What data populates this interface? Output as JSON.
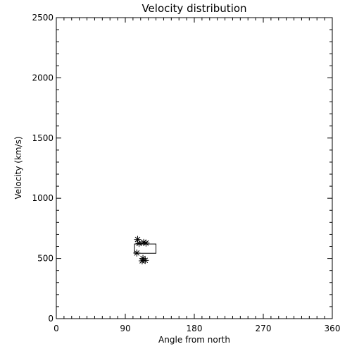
{
  "chart_data": {
    "type": "scatter",
    "title": "Velocity distribution",
    "xlabel": "Angle from north",
    "ylabel": "Velocity (km/s)",
    "xlim": [
      0,
      360
    ],
    "ylim": [
      0,
      2500
    ],
    "x_ticks": [
      0,
      90,
      180,
      270,
      360
    ],
    "y_ticks": [
      0,
      500,
      1000,
      1500,
      2000,
      2500
    ],
    "x_ticks_minor": 10,
    "y_ticks_minor": 100,
    "grid": false,
    "marker": "asterisk",
    "points": [
      {
        "x": 106,
        "y": 658
      },
      {
        "x": 108,
        "y": 625
      },
      {
        "x": 114,
        "y": 633
      },
      {
        "x": 117,
        "y": 628
      },
      {
        "x": 105,
        "y": 545
      },
      {
        "x": 113,
        "y": 500
      },
      {
        "x": 112,
        "y": 480
      },
      {
        "x": 116,
        "y": 484
      }
    ],
    "box": {
      "x0": 102,
      "x1": 130,
      "y0": 543,
      "y1": 620
    },
    "colors": {
      "axes": "#000000",
      "background": "#ffffff"
    }
  }
}
